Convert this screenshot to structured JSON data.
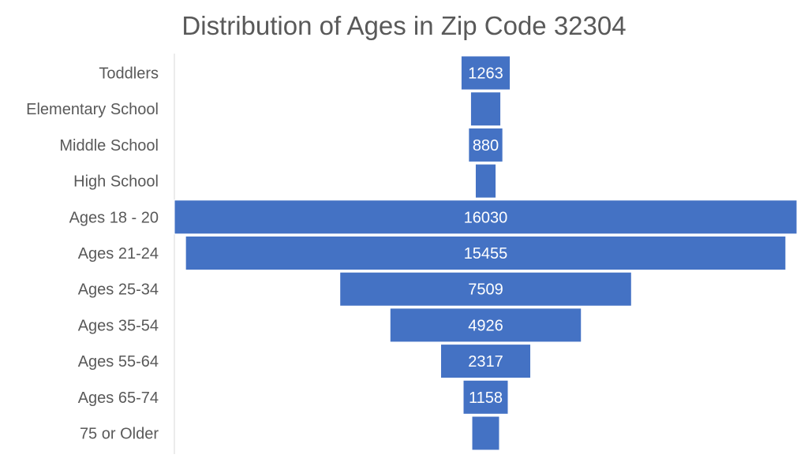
{
  "chart_data": {
    "type": "funnel",
    "title": "Distribution of Ages in Zip Code 32304",
    "categories": [
      "Toddlers",
      "Elementary School",
      "Middle School",
      "High School",
      "Ages 18 - 20",
      "Ages 21-24",
      "Ages 25-34",
      "Ages 35-54",
      "Ages 55-64",
      "Ages 65-74",
      "75 or Older"
    ],
    "values": [
      1263,
      775,
      880,
      530,
      16030,
      15455,
      7509,
      4926,
      2317,
      1158,
      710
    ],
    "data_labels_shown": [
      true,
      false,
      true,
      false,
      true,
      true,
      true,
      true,
      true,
      true,
      false
    ],
    "xlabel": "",
    "ylabel": "",
    "grid": false,
    "legend": "none",
    "bar_color": "#4472C4",
    "label_color": "#ffffff",
    "text_color": "#595959"
  }
}
